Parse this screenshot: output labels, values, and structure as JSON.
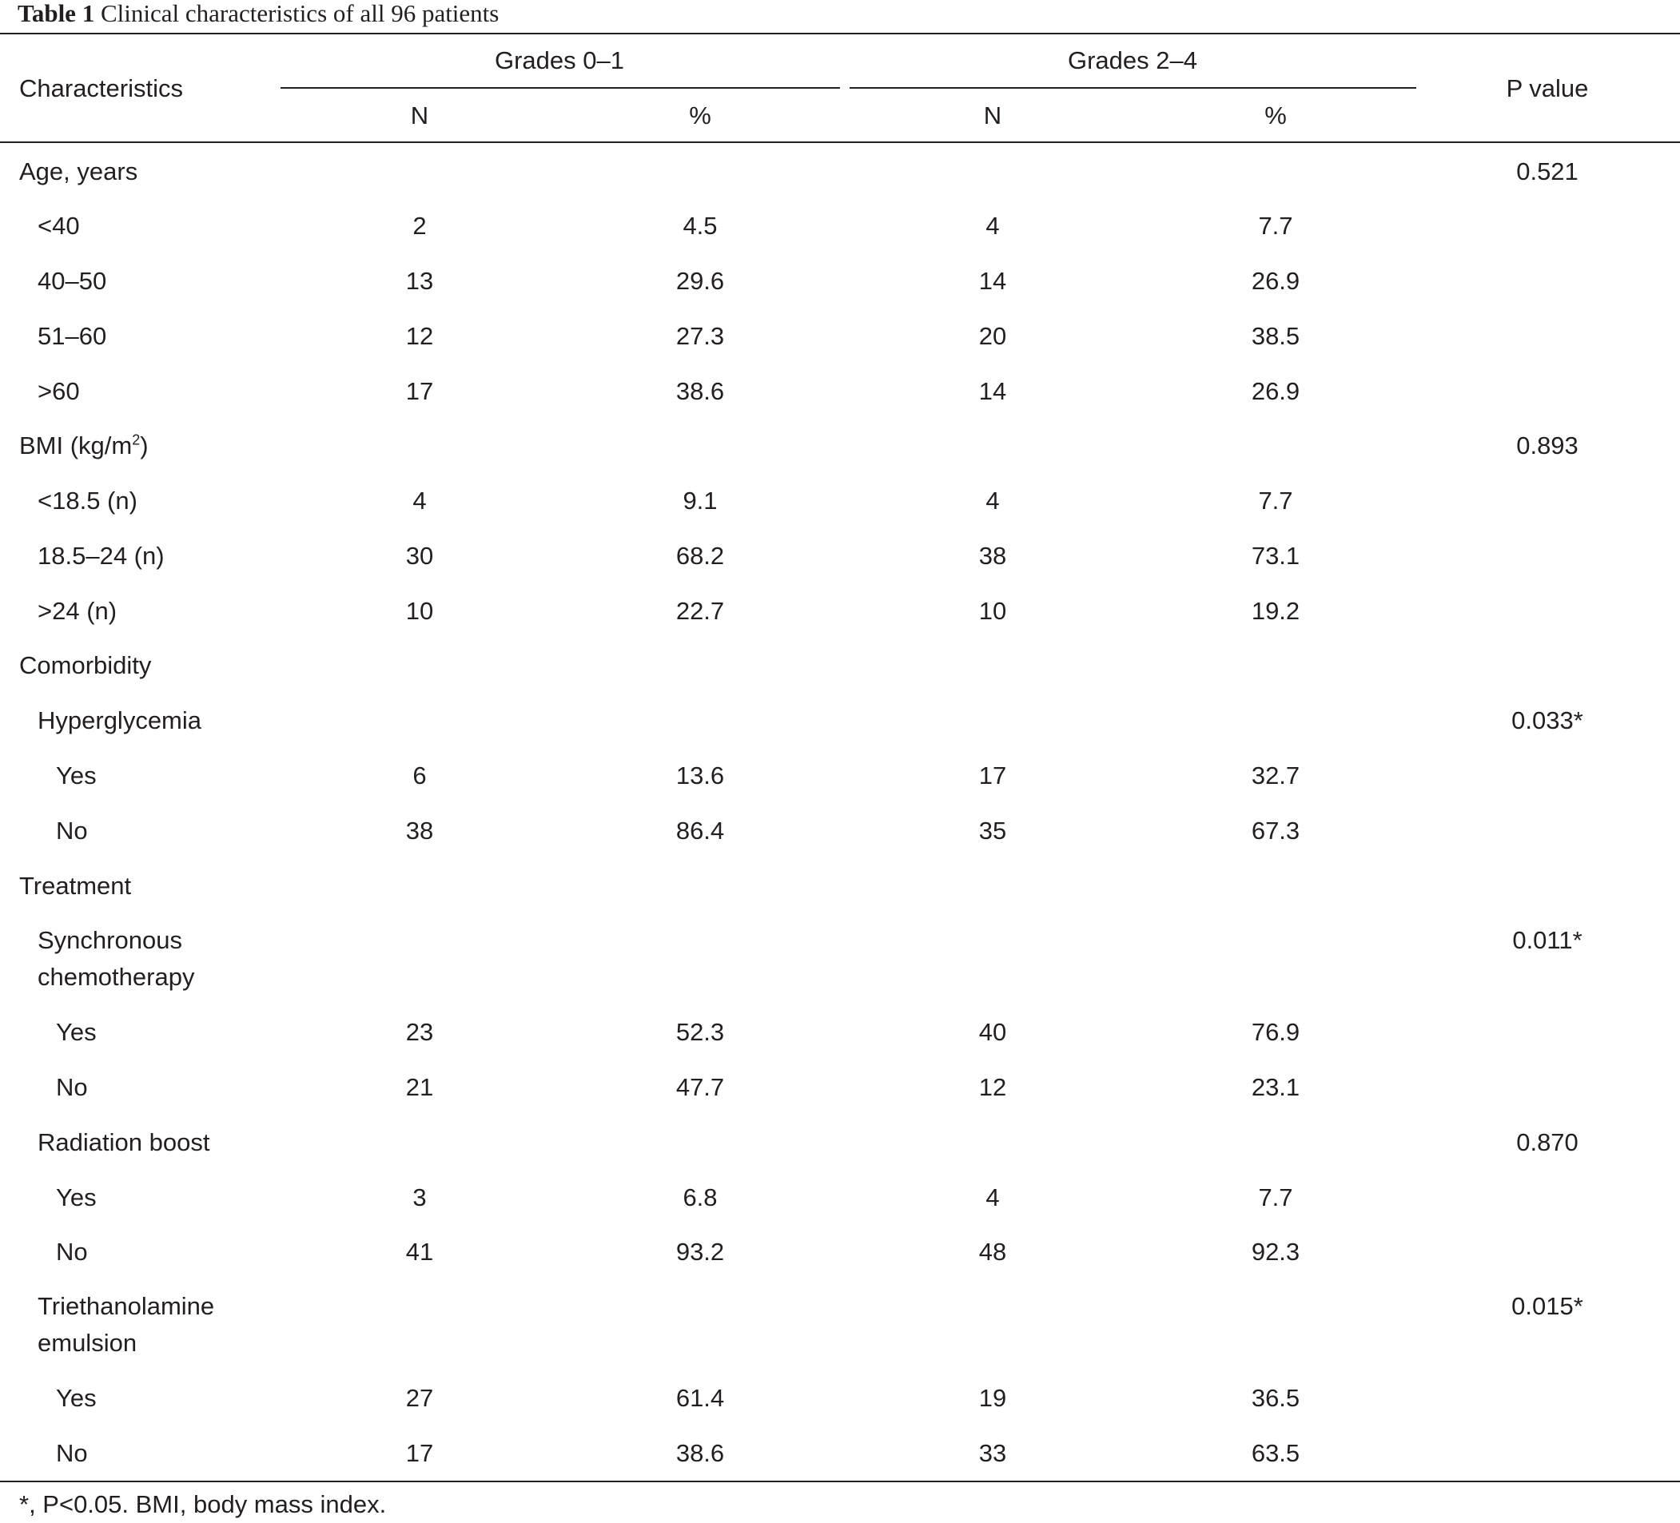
{
  "caption": {
    "label": "Table 1",
    "text": "Clinical characteristics of all 96 patients"
  },
  "header": {
    "characteristics": "Characteristics",
    "group1": "Grades 0–1",
    "group2": "Grades 2–4",
    "p_value": "P value",
    "n": "N",
    "pct": "%"
  },
  "rows": [
    {
      "label": "Age, years",
      "level": 0,
      "n1": "",
      "p1": "",
      "n2": "",
      "p2": "",
      "p": "0.521"
    },
    {
      "label": "<40",
      "level": 1,
      "n1": "2",
      "p1": "4.5",
      "n2": "4",
      "p2": "7.7",
      "p": ""
    },
    {
      "label": "40–50",
      "level": 1,
      "n1": "13",
      "p1": "29.6",
      "n2": "14",
      "p2": "26.9",
      "p": ""
    },
    {
      "label": "51–60",
      "level": 1,
      "n1": "12",
      "p1": "27.3",
      "n2": "20",
      "p2": "38.5",
      "p": ""
    },
    {
      "label": ">60",
      "level": 1,
      "n1": "17",
      "p1": "38.6",
      "n2": "14",
      "p2": "26.9",
      "p": ""
    },
    {
      "label": "BMI (kg/m",
      "sup": "2",
      "label_tail": ")",
      "level": 0,
      "n1": "",
      "p1": "",
      "n2": "",
      "p2": "",
      "p": "0.893"
    },
    {
      "label": "<18.5 (n)",
      "level": 1,
      "n1": "4",
      "p1": "9.1",
      "n2": "4",
      "p2": "7.7",
      "p": ""
    },
    {
      "label": "18.5–24 (n)",
      "level": 1,
      "n1": "30",
      "p1": "68.2",
      "n2": "38",
      "p2": "73.1",
      "p": ""
    },
    {
      "label": ">24 (n)",
      "level": 1,
      "n1": "10",
      "p1": "22.7",
      "n2": "10",
      "p2": "19.2",
      "p": ""
    },
    {
      "label": "Comorbidity",
      "level": 0,
      "n1": "",
      "p1": "",
      "n2": "",
      "p2": "",
      "p": ""
    },
    {
      "label": "Hyperglycemia",
      "level": 1,
      "n1": "",
      "p1": "",
      "n2": "",
      "p2": "",
      "p": "0.033*"
    },
    {
      "label": "Yes",
      "level": 2,
      "n1": "6",
      "p1": "13.6",
      "n2": "17",
      "p2": "32.7",
      "p": ""
    },
    {
      "label": "No",
      "level": 2,
      "n1": "38",
      "p1": "86.4",
      "n2": "35",
      "p2": "67.3",
      "p": ""
    },
    {
      "label": "Treatment",
      "level": 0,
      "n1": "",
      "p1": "",
      "n2": "",
      "p2": "",
      "p": ""
    },
    {
      "label": "Synchronous chemotherapy",
      "level": 1,
      "n1": "",
      "p1": "",
      "n2": "",
      "p2": "",
      "p": "0.011*"
    },
    {
      "label": "Yes",
      "level": 2,
      "n1": "23",
      "p1": "52.3",
      "n2": "40",
      "p2": "76.9",
      "p": ""
    },
    {
      "label": "No",
      "level": 2,
      "n1": "21",
      "p1": "47.7",
      "n2": "12",
      "p2": "23.1",
      "p": ""
    },
    {
      "label": "Radiation boost",
      "level": 1,
      "n1": "",
      "p1": "",
      "n2": "",
      "p2": "",
      "p": "0.870"
    },
    {
      "label": "Yes",
      "level": 2,
      "n1": "3",
      "p1": "6.8",
      "n2": "4",
      "p2": "7.7",
      "p": ""
    },
    {
      "label": "No",
      "level": 2,
      "n1": "41",
      "p1": "93.2",
      "n2": "48",
      "p2": "92.3",
      "p": ""
    },
    {
      "label": "Triethanolamine emulsion",
      "level": 1,
      "n1": "",
      "p1": "",
      "n2": "",
      "p2": "",
      "p": "0.015*"
    },
    {
      "label": "Yes",
      "level": 2,
      "n1": "27",
      "p1": "61.4",
      "n2": "19",
      "p2": "36.5",
      "p": ""
    },
    {
      "label": "No",
      "level": 2,
      "n1": "17",
      "p1": "38.6",
      "n2": "33",
      "p2": "63.5",
      "p": ""
    }
  ],
  "footnote": "*, P<0.05. BMI, body mass index."
}
